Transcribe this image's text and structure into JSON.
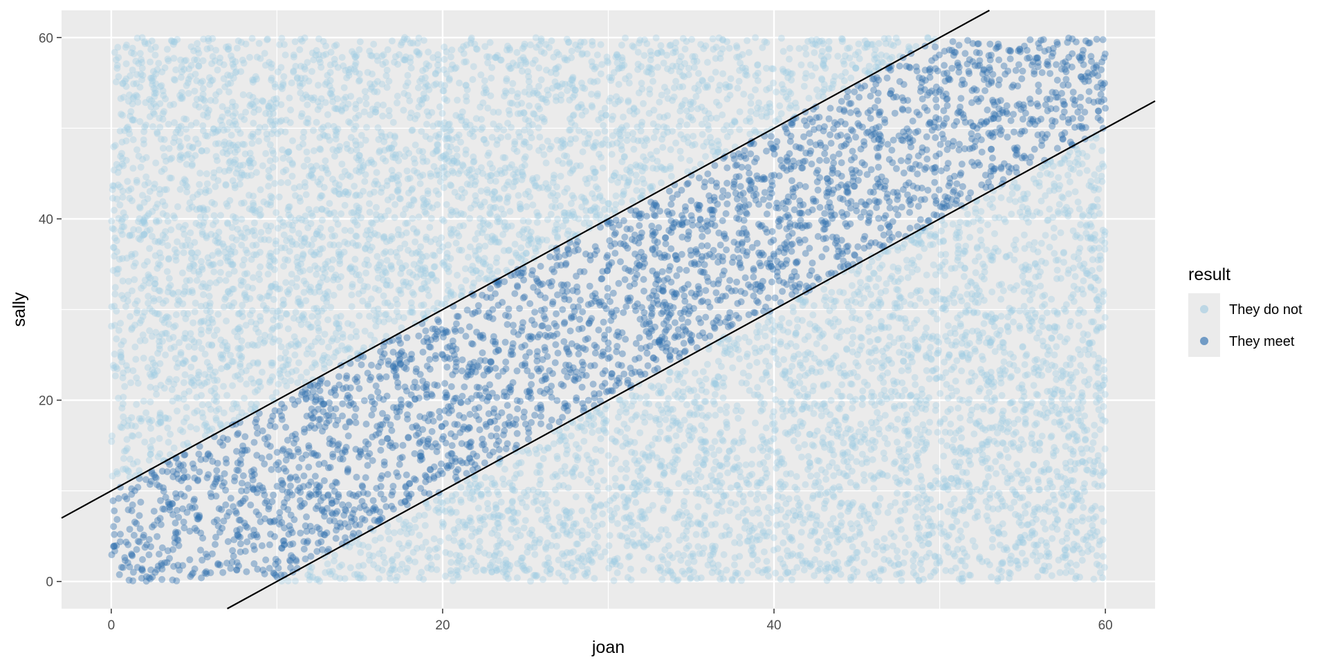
{
  "chart_data": {
    "type": "scatter",
    "title": "",
    "xlabel": "joan",
    "ylabel": "sally",
    "xlim": [
      -3,
      63
    ],
    "ylim": [
      -3,
      63
    ],
    "x_ticks": [
      0,
      20,
      40,
      60
    ],
    "y_ticks": [
      0,
      20,
      40,
      60
    ],
    "x_tick_labels": [
      "0",
      "20",
      "40",
      "60"
    ],
    "y_tick_labels": [
      "0",
      "20",
      "40",
      "60"
    ],
    "grid": true,
    "legend": {
      "title": "result",
      "placement": "right",
      "entries": [
        "They do not",
        "They meet"
      ]
    },
    "series": [
      {
        "name": "They do not",
        "color": "#9ECAE1",
        "opacity": 0.35,
        "domain": [
          0,
          60
        ],
        "condition": "abs(sally - joan) > 10"
      },
      {
        "name": "They meet",
        "color": "#3070B0",
        "opacity": 0.4,
        "domain": [
          0,
          60
        ],
        "condition": "abs(sally - joan) <= 10"
      }
    ],
    "reference_lines": [
      {
        "intercept": 10,
        "slope": 1,
        "color": "#000000"
      },
      {
        "intercept": -10,
        "slope": 1,
        "color": "#000000"
      }
    ]
  }
}
